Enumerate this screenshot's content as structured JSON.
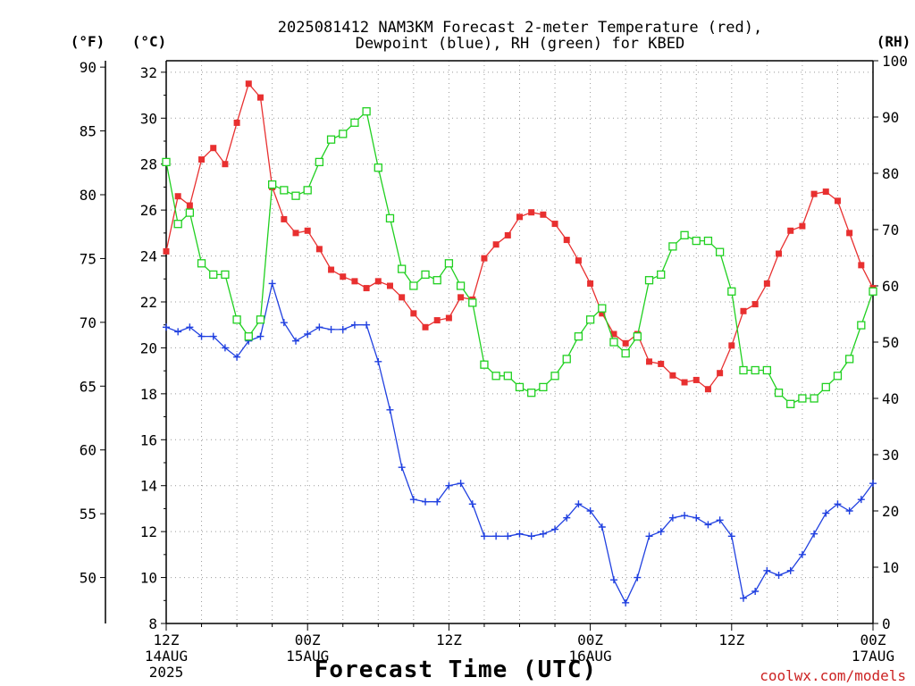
{
  "chart_data": {
    "type": "line",
    "title_line1": "2025081412 NAM3KM Forecast 2-meter Temperature (red),",
    "title_line2": "Dewpoint (blue), RH (green) for KBED",
    "xlabel": "Forecast Time (UTC)",
    "credit": "coolwx.com/models",
    "units": {
      "fahrenheit": "(°F)",
      "celsius": "(°C)",
      "rh": "(RH)"
    },
    "x_ticks": [
      {
        "hour": 0,
        "line1": "12Z",
        "line2": "14AUG",
        "line3": "2025"
      },
      {
        "hour": 12,
        "line1": "00Z",
        "line2": "15AUG",
        "line3": ""
      },
      {
        "hour": 24,
        "line1": "12Z",
        "line2": "",
        "line3": ""
      },
      {
        "hour": 36,
        "line1": "00Z",
        "line2": "16AUG",
        "line3": ""
      },
      {
        "hour": 48,
        "line1": "12Z",
        "line2": "",
        "line3": ""
      },
      {
        "hour": 60,
        "line1": "00Z",
        "line2": "17AUG",
        "line3": ""
      }
    ],
    "xlim": [
      0,
      60
    ],
    "ylim_c": [
      8,
      32.5
    ],
    "ylim_rh": [
      0,
      100
    ],
    "c_ticks": [
      "8",
      "10",
      "12",
      "14",
      "16",
      "18",
      "20",
      "22",
      "24",
      "26",
      "28",
      "30",
      "32"
    ],
    "f_ticks": [
      "50",
      "55",
      "60",
      "65",
      "70",
      "75",
      "80",
      "85",
      "90"
    ],
    "rh_ticks": [
      "0",
      "10",
      "20",
      "30",
      "40",
      "50",
      "60",
      "70",
      "80",
      "90",
      "100"
    ],
    "colors": {
      "temperature": "#e83030",
      "dewpoint": "#2040e0",
      "rh": "#20d020"
    },
    "series": [
      {
        "key": "temperature",
        "axis": "c",
        "marker": "square-filled",
        "values": [
          24.2,
          26.6,
          26.2,
          28.2,
          28.7,
          28.0,
          29.8,
          31.5,
          30.9,
          27.0,
          25.6,
          25.0,
          25.1,
          24.3,
          23.4,
          23.1,
          22.9,
          22.6,
          22.9,
          22.7,
          22.2,
          21.5,
          20.9,
          21.2,
          21.3,
          22.2,
          22.1,
          23.9,
          24.5,
          24.9,
          25.7,
          25.9,
          25.8,
          25.4,
          24.7,
          23.8,
          22.8,
          21.5,
          20.6,
          20.2,
          20.6,
          19.4,
          19.3,
          18.8,
          18.5,
          18.6,
          18.2,
          18.9,
          20.1,
          21.6,
          21.9,
          22.8,
          24.1,
          25.1,
          25.3,
          26.7,
          26.8,
          26.4,
          25.0,
          23.6,
          22.6
        ]
      },
      {
        "key": "dewpoint",
        "axis": "c",
        "marker": "plus",
        "values": [
          20.9,
          20.7,
          20.9,
          20.5,
          20.5,
          20.0,
          19.6,
          20.3,
          20.5,
          22.8,
          21.1,
          20.3,
          20.6,
          20.9,
          20.8,
          20.8,
          21.0,
          21.0,
          19.4,
          17.3,
          14.8,
          13.4,
          13.3,
          13.3,
          14.0,
          14.1,
          13.2,
          11.8,
          11.8,
          11.8,
          11.9,
          11.8,
          11.9,
          12.1,
          12.6,
          13.2,
          12.9,
          12.2,
          9.9,
          8.9,
          10.0,
          11.8,
          12.0,
          12.6,
          12.7,
          12.6,
          12.3,
          12.5,
          11.8,
          9.1,
          9.4,
          10.3,
          10.1,
          10.3,
          11.0,
          11.9,
          12.8,
          13.2,
          12.9,
          13.4,
          14.1
        ]
      },
      {
        "key": "rh",
        "axis": "rh",
        "marker": "square-open",
        "values": [
          82,
          71,
          73,
          64,
          62,
          62,
          54,
          51,
          54,
          78,
          77,
          76,
          77,
          82,
          86,
          87,
          89,
          91,
          81,
          72,
          63,
          60,
          62,
          61,
          64,
          60,
          57,
          46,
          44,
          44,
          42,
          41,
          42,
          44,
          47,
          51,
          54,
          56,
          50,
          48,
          51,
          61,
          62,
          67,
          69,
          68,
          68,
          66,
          59,
          45,
          45,
          45,
          41,
          39,
          40,
          40,
          42,
          44,
          47,
          53,
          59
        ]
      }
    ]
  }
}
